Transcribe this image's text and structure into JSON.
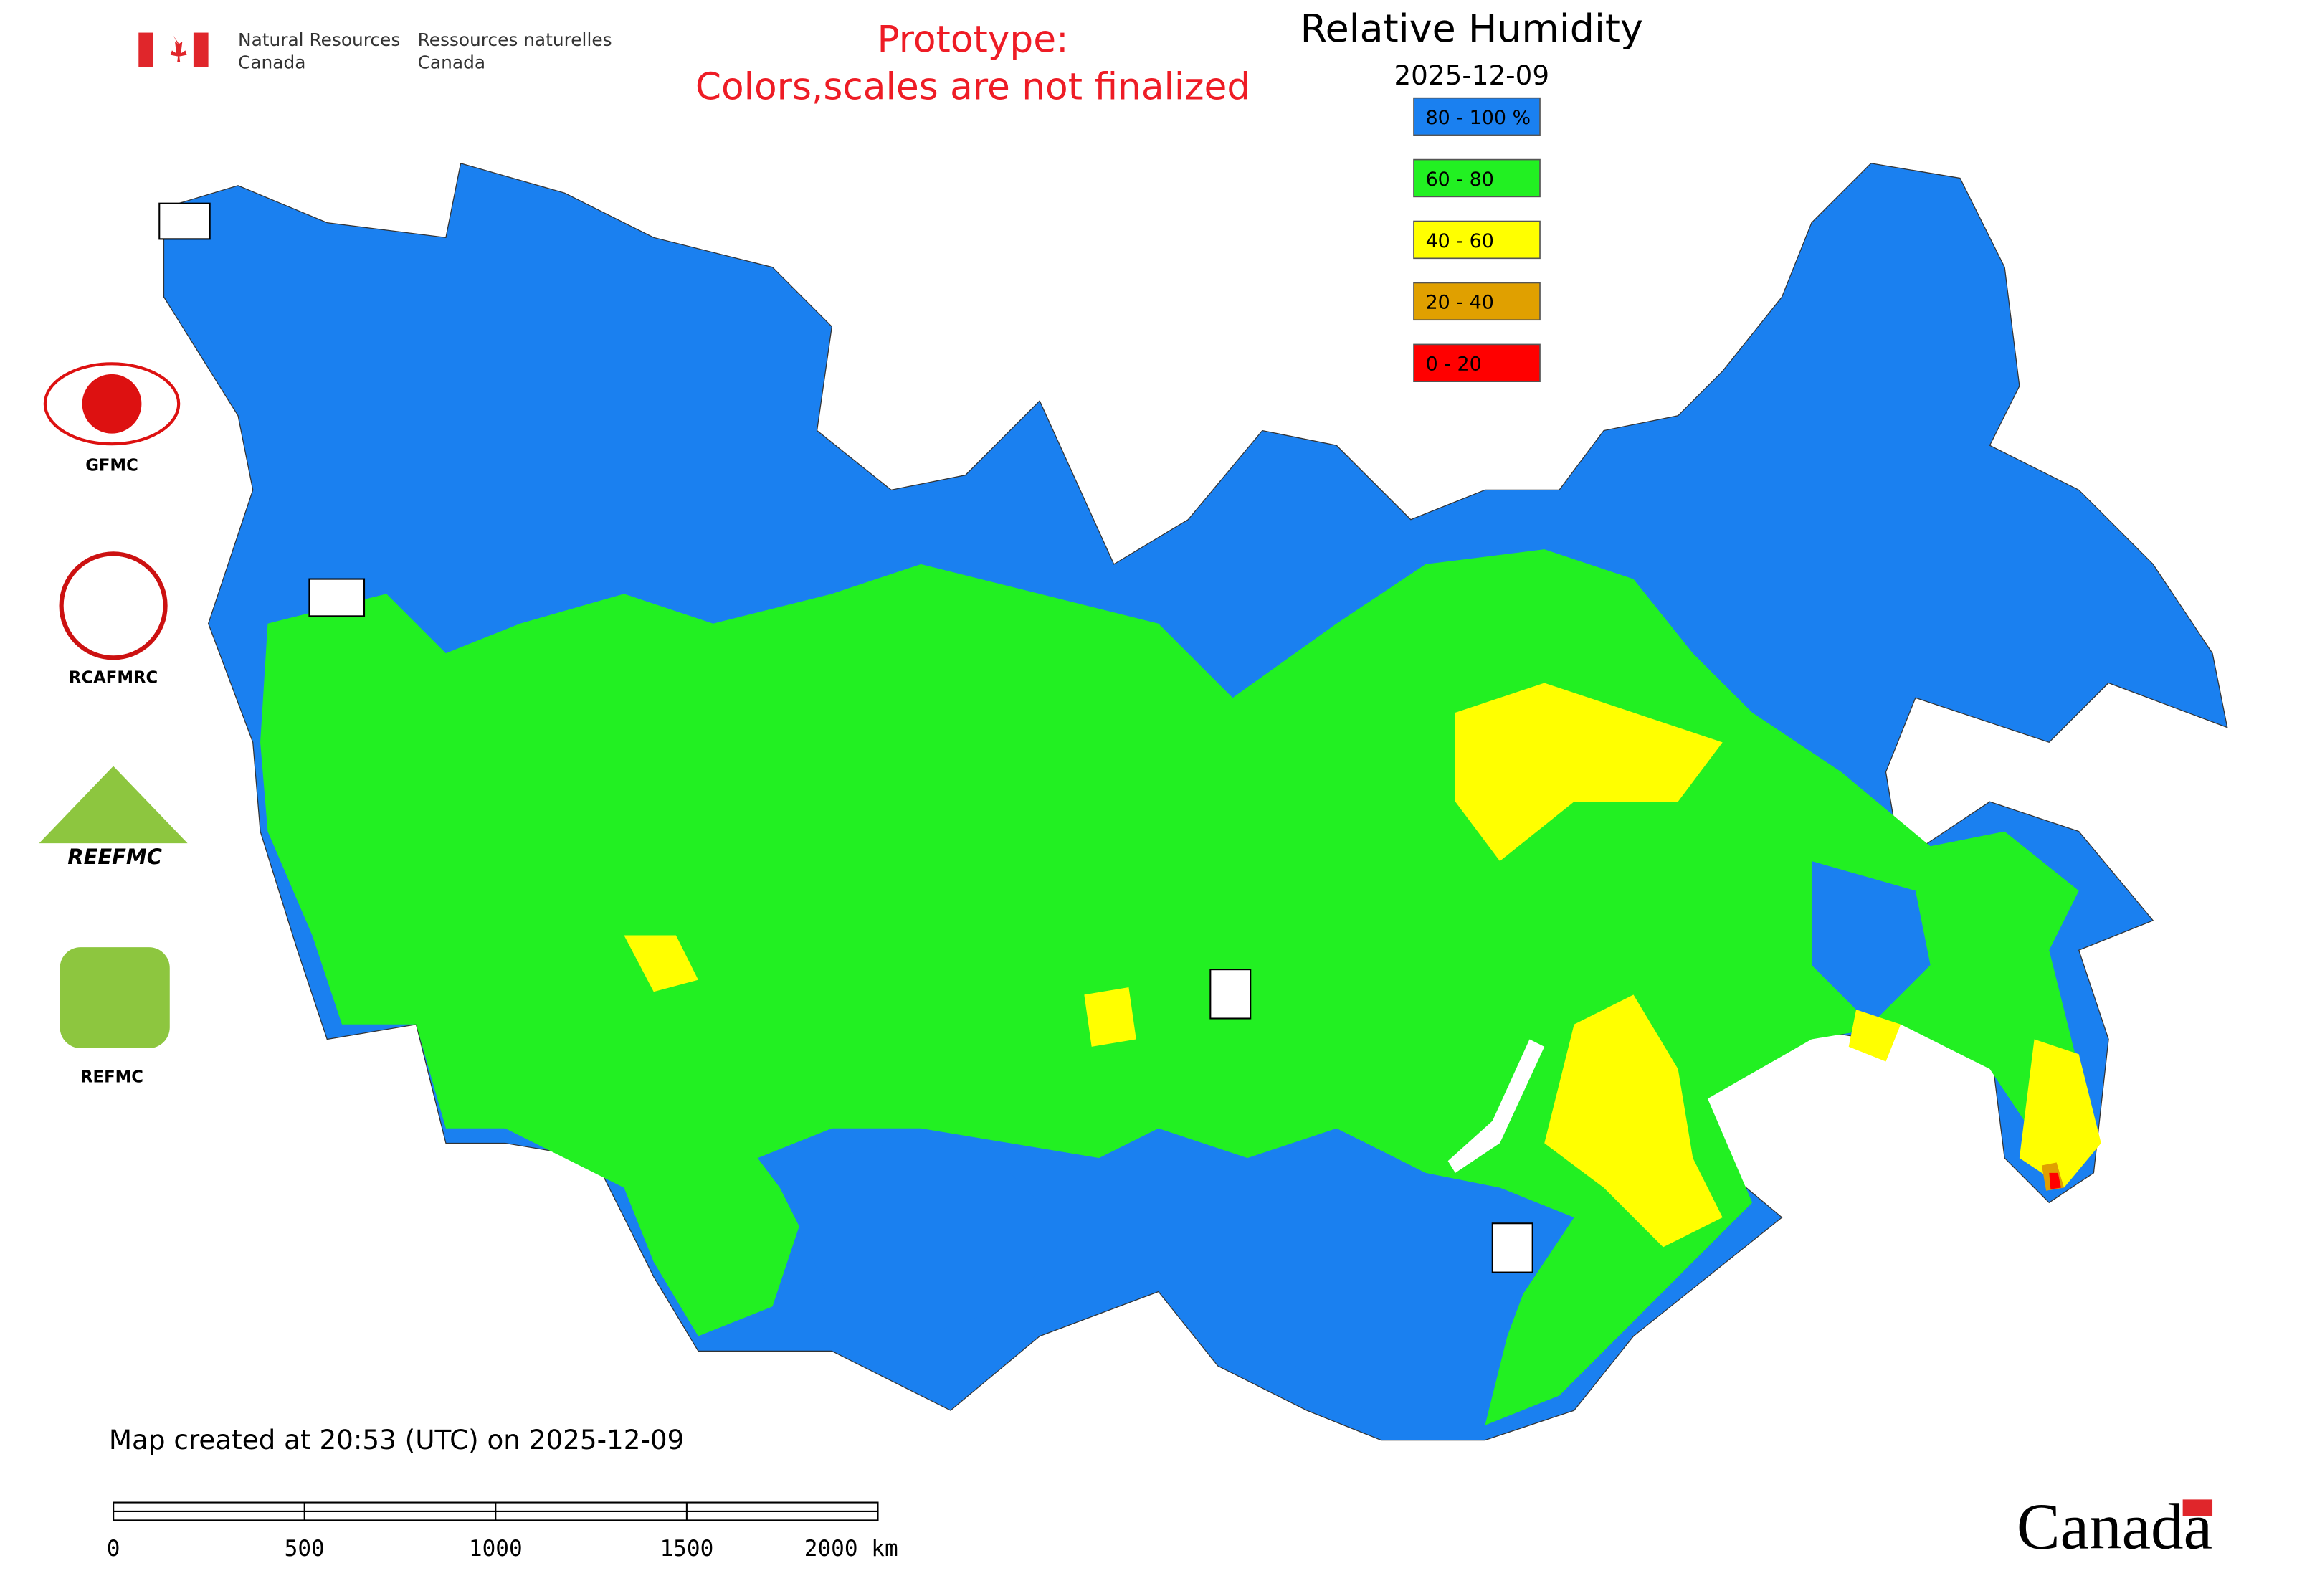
{
  "header": {
    "department_en": [
      "Natural Resources",
      "Canada"
    ],
    "department_fr": [
      "Ressources naturelles",
      "Canada"
    ],
    "notice": [
      "Prototype:",
      "Colors,scales are not finalized"
    ]
  },
  "map": {
    "title": "Relative Humidity",
    "date": "2025-12-09",
    "legend": [
      {
        "label": "80 - 100 %",
        "color": "#1a80f0"
      },
      {
        "label": "60 - 80",
        "color": "#22f022"
      },
      {
        "label": "40 - 60",
        "color": "#ffff00"
      },
      {
        "label": "20 - 40",
        "color": "#e0a000"
      },
      {
        "label": "0 - 20",
        "color": "#ff0000"
      }
    ],
    "footer": "Map created at 20:53 (UTC) on 2025-12-09",
    "scale_bar": {
      "range": [
        0,
        2000
      ],
      "ticks": [
        0,
        500,
        1000,
        1500,
        {
          "value": 2000,
          "label": "2000 km"
        }
      ]
    }
  },
  "logos": [
    "GFMC",
    "RCAFMRC",
    "REEFMC",
    "REFMC"
  ],
  "wordmark": "Canada"
}
